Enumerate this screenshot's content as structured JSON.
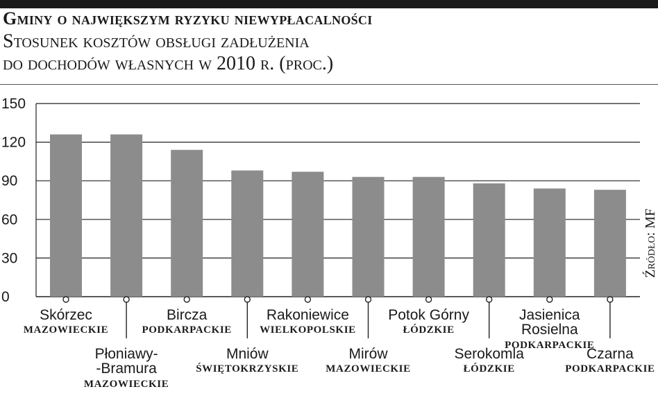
{
  "title": "Gminy o największym ryzyku niewypłacalności",
  "subtitle_line1": "Stosunek kosztów obsługi zadłużenia",
  "subtitle_line2": "do dochodów własnych w 2010 r. (proc.)",
  "source": "Źródło: MF",
  "colors": {
    "bar": "#8c8c8c",
    "grid": "#222222",
    "text": "#1a1a1a"
  },
  "chart_data": {
    "type": "bar",
    "title": "Gminy o największym ryzyku niewypłacalności",
    "subtitle": "Stosunek kosztów obsługi zadłużenia do dochodów własnych w 2010 r. (proc.)",
    "ylim": [
      0,
      150
    ],
    "yticks": [
      0,
      30,
      60,
      90,
      120,
      150
    ],
    "grid": true,
    "categories": [
      {
        "name": [
          "Skórzec"
        ],
        "region": "MAZOWIECKIE",
        "tier": 1
      },
      {
        "name": [
          "Płoniawy-",
          "-Bramura"
        ],
        "region": "MAZOWIECKIE",
        "tier": 2
      },
      {
        "name": [
          "Bircza"
        ],
        "region": "PODKARPACKIE",
        "tier": 1
      },
      {
        "name": [
          "Mniów"
        ],
        "region": "ŚWIĘTOKRZYSKIE",
        "tier": 2
      },
      {
        "name": [
          "Rakoniewice"
        ],
        "region": "WIELKOPOLSKIE",
        "tier": 1
      },
      {
        "name": [
          "Mirów"
        ],
        "region": "MAZOWIECKIE",
        "tier": 2
      },
      {
        "name": [
          "Potok Górny"
        ],
        "region": "ŁÓDZKIE",
        "tier": 1
      },
      {
        "name": [
          "Serokomla"
        ],
        "region": "ŁÓDZKIE",
        "tier": 2
      },
      {
        "name": [
          "Jasienica",
          "Rosielna"
        ],
        "region": "PODKARPACKIE",
        "tier": 1
      },
      {
        "name": [
          "Czarna"
        ],
        "region": "PODKARPACKIE",
        "tier": 2
      }
    ],
    "values": [
      126,
      126,
      114,
      98,
      97,
      93,
      93,
      88,
      84,
      83
    ]
  }
}
